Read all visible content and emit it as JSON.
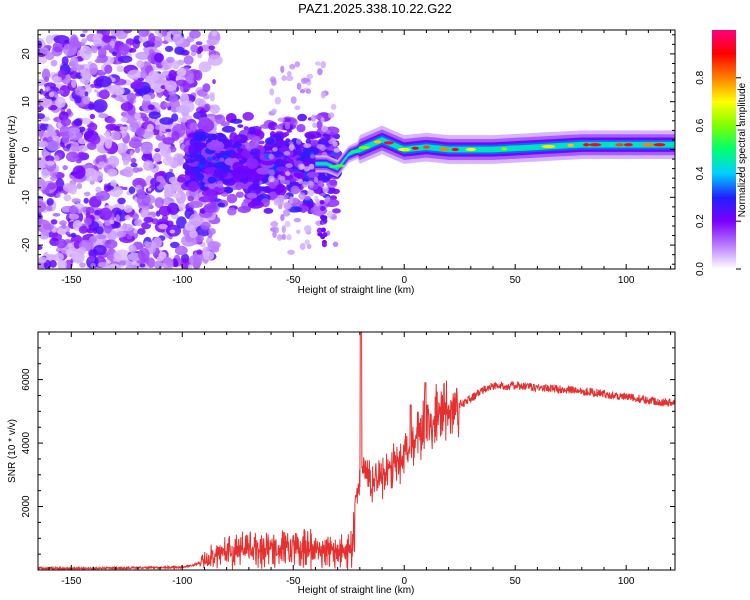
{
  "title": "PAZ1.2025.338.10.22.G22",
  "chart_data": [
    {
      "type": "heatmap",
      "panel": "top",
      "xlabel": "Height of straight line (km)",
      "ylabel": "Frequency (Hz)",
      "xlim": [
        -165,
        122
      ],
      "ylim": [
        -25,
        25
      ],
      "xticks": [
        -150,
        -100,
        -50,
        0,
        50,
        100
      ],
      "xtick_labels": [
        "-150",
        "-100",
        "-50",
        "0",
        "50",
        "100"
      ],
      "yticks": [
        -20,
        -10,
        0,
        10,
        20
      ],
      "ytick_labels": [
        "-20",
        "-10",
        "0",
        "10",
        "20"
      ],
      "colorbar": {
        "label": "Normalized spectral amplitude",
        "range": [
          0,
          1
        ],
        "ticks": [
          0.0,
          0.2,
          0.4,
          0.6,
          0.8
        ],
        "tick_labels": [
          "0.0",
          "0.2",
          "0.4",
          "0.6",
          "0.8"
        ],
        "stops": [
          "#ffffff",
          "#b97bff",
          "#7a00ff",
          "#2020ff",
          "#00d0ff",
          "#00ff70",
          "#7fff00",
          "#ffff00",
          "#ff8000",
          "#ff0000",
          "#ff0080"
        ]
      },
      "description_series": [
        {
          "name": "main tone frequency",
          "x": [
            -35,
            -30,
            -25,
            -20,
            -15,
            -10,
            -5,
            0,
            10,
            20,
            40,
            60,
            80,
            100,
            122
          ],
          "y": [
            -3,
            -4,
            -1,
            0,
            1,
            2,
            1,
            0,
            0.5,
            0,
            0,
            0.5,
            1,
            1,
            1
          ]
        }
      ]
    },
    {
      "type": "line",
      "panel": "bottom",
      "xlabel": "Height of straight line (km)",
      "ylabel": "SNR (10 * v/v)",
      "xlim": [
        -165,
        122
      ],
      "ylim": [
        0,
        7500
      ],
      "xticks": [
        -150,
        -100,
        -50,
        0,
        50,
        100
      ],
      "xtick_labels": [
        "-150",
        "-100",
        "-50",
        "0",
        "50",
        "100"
      ],
      "yticks": [
        2000,
        4000,
        6000
      ],
      "ytick_labels": [
        "2000",
        "4000",
        "6000"
      ],
      "series": [
        {
          "name": "SNR",
          "color": "#e53030",
          "x": [
            -165,
            -150,
            -130,
            -110,
            -100,
            -95,
            -90,
            -85,
            -80,
            -70,
            -60,
            -50,
            -40,
            -30,
            -25,
            -23,
            -21,
            -20,
            -19,
            -17,
            -15,
            -10,
            -5,
            0,
            5,
            10,
            15,
            20,
            25,
            30,
            35,
            40,
            50,
            60,
            70,
            80,
            90,
            100,
            110,
            122
          ],
          "y": [
            60,
            50,
            60,
            80,
            90,
            150,
            300,
            500,
            600,
            650,
            700,
            650,
            650,
            550,
            600,
            1200,
            2500,
            3000,
            3200,
            3000,
            2800,
            3000,
            3300,
            3700,
            4100,
            4500,
            4800,
            5000,
            5200,
            5400,
            5650,
            5800,
            5800,
            5750,
            5700,
            5650,
            5550,
            5450,
            5350,
            5250
          ]
        }
      ]
    }
  ]
}
